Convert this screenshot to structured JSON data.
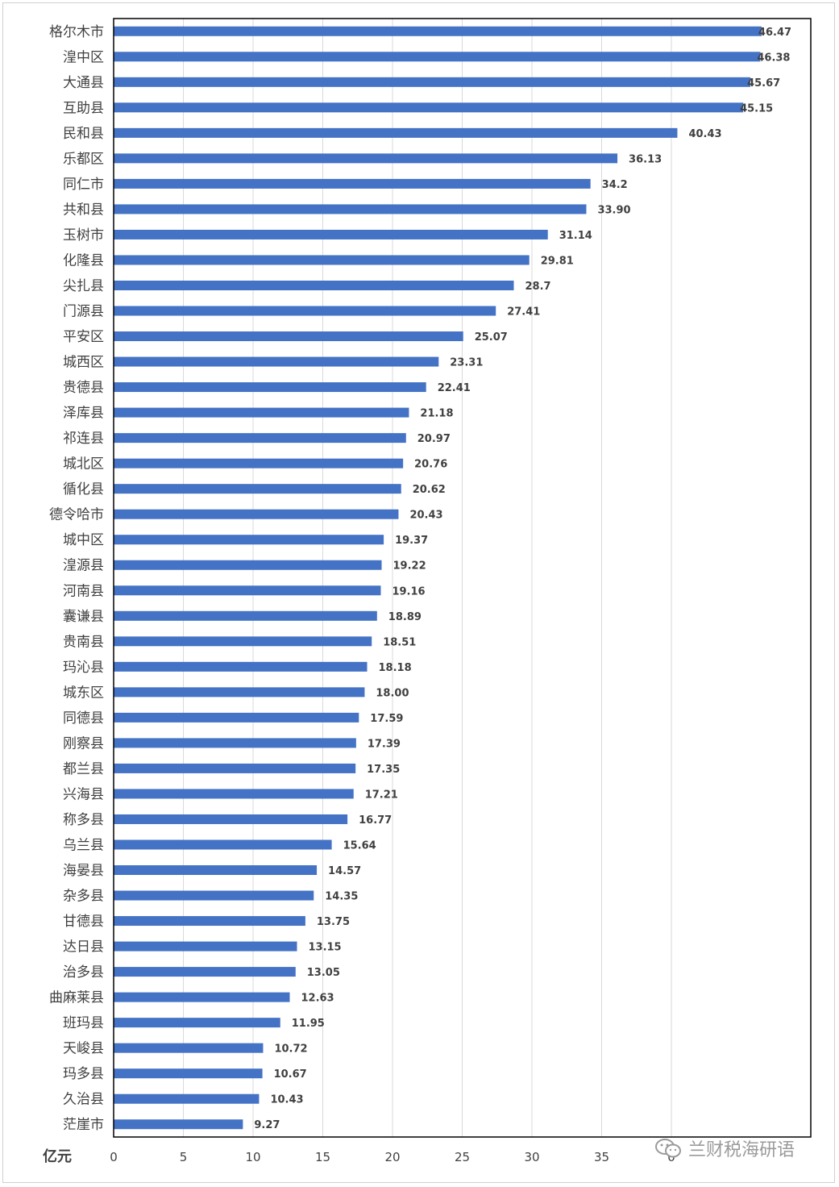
{
  "chart_data": {
    "type": "bar",
    "orientation": "horizontal",
    "unit_label": "亿元",
    "categories": [
      "格尔木市",
      "湟中区",
      "大通县",
      "互助县",
      "民和县",
      "乐都区",
      "同仁市",
      "共和县",
      "玉树市",
      "化隆县",
      "尖扎县",
      "门源县",
      "平安区",
      "城西区",
      "贵德县",
      "泽库县",
      "祁连县",
      "城北区",
      "循化县",
      "德令哈市",
      "城中区",
      "湟源县",
      "河南县",
      "囊谦县",
      "贵南县",
      "玛沁县",
      "城东区",
      "同德县",
      "刚察县",
      "都兰县",
      "兴海县",
      "称多县",
      "乌兰县",
      "海晏县",
      "杂多县",
      "甘德县",
      "达日县",
      "治多县",
      "曲麻莱县",
      "班玛县",
      "天峻县",
      "玛多县",
      "久治县",
      "茫崖市"
    ],
    "values": [
      46.47,
      46.38,
      45.67,
      45.15,
      40.43,
      36.13,
      34.2,
      33.9,
      31.14,
      29.81,
      28.7,
      27.41,
      25.07,
      23.31,
      22.41,
      21.18,
      20.97,
      20.76,
      20.62,
      20.43,
      19.37,
      19.22,
      19.16,
      18.89,
      18.51,
      18.18,
      18.0,
      17.59,
      17.39,
      17.35,
      17.21,
      16.77,
      15.64,
      14.57,
      14.35,
      13.75,
      13.15,
      13.05,
      12.63,
      11.95,
      10.72,
      10.67,
      10.43,
      9.27
    ],
    "value_labels": [
      "46.47",
      "46.38",
      "45.67",
      "45.15",
      "40.43",
      "36.13",
      "34.2",
      "33.90",
      "31.14",
      "29.81",
      "28.7",
      "27.41",
      "25.07",
      "23.31",
      "22.41",
      "21.18",
      "20.97",
      "20.76",
      "20.62",
      "20.43",
      "19.37",
      "19.22",
      "19.16",
      "18.89",
      "18.51",
      "18.18",
      "18.00",
      "17.59",
      "17.39",
      "17.35",
      "17.21",
      "16.77",
      "15.64",
      "14.57",
      "14.35",
      "13.75",
      "13.15",
      "13.05",
      "12.63",
      "11.95",
      "10.72",
      "10.67",
      "10.43",
      "9.27"
    ],
    "xlim": [
      0,
      50
    ],
    "x_ticks": [
      "0",
      "5",
      "10",
      "15",
      "20",
      "25",
      "30",
      "35",
      "0"
    ],
    "grid": true,
    "bar_color": "#4472C4",
    "gridline_color": "#d9d9d9"
  },
  "watermark": {
    "text": "兰财税海研语",
    "icon": "wechat-icon"
  }
}
